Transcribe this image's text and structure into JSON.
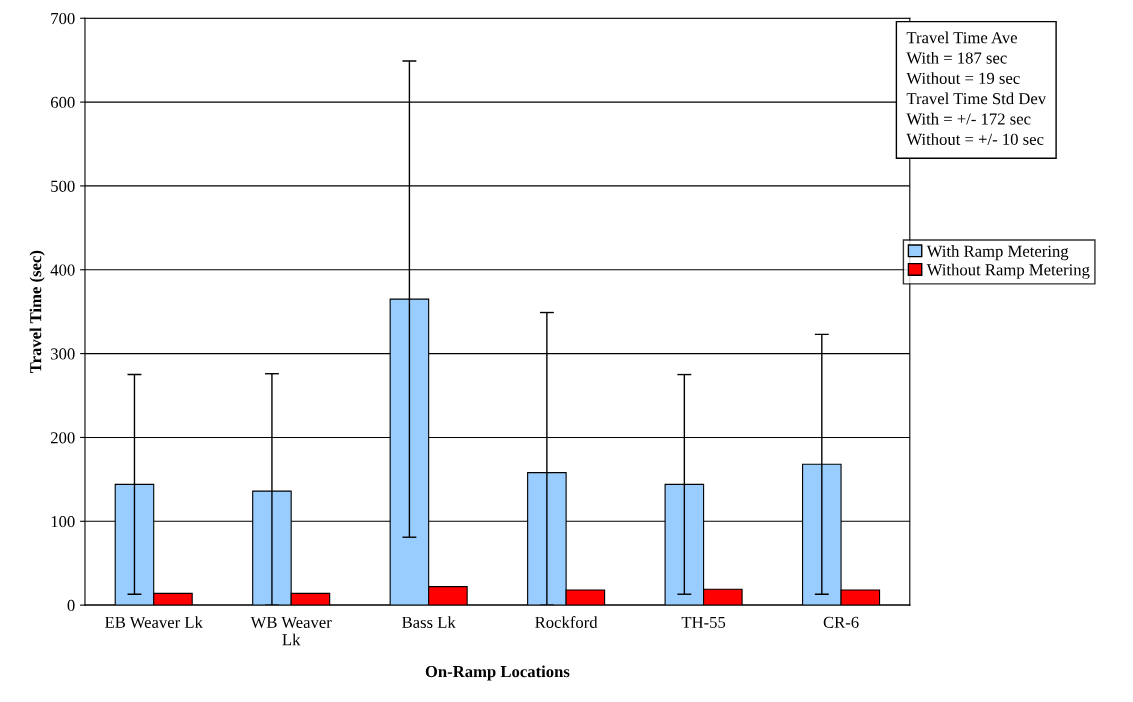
{
  "chart_data": {
    "type": "bar",
    "xlabel": "On-Ramp Locations",
    "ylabel": "Travel Time (sec)",
    "categories": [
      "EB Weaver Lk",
      "WB Weaver\nLk",
      "Bass Lk",
      "Rockford",
      "TH-55",
      "CR-6"
    ],
    "series": [
      {
        "name": "With Ramp Metering",
        "color": "#99ccff",
        "values": [
          144,
          136,
          365,
          158,
          144,
          168
        ],
        "errors": [
          131,
          [
            0,
            276
          ],
          284,
          [
            0,
            349
          ],
          131,
          155
        ]
      },
      {
        "name": "Without Ramp Metering",
        "color": "#ff0000",
        "values": [
          14,
          14,
          22,
          18,
          19,
          18
        ]
      }
    ],
    "ylim": [
      0,
      700
    ],
    "yticks": [
      0,
      100,
      200,
      300,
      400,
      500,
      600,
      700
    ],
    "grid": "y",
    "legend": "right",
    "annotations": [
      "Travel Time Ave\nWith = 187 sec\nWithout = 19 sec\nTravel Time Std Dev\nWith = +/- 172 sec\nWithout = +/- 10 sec"
    ]
  }
}
